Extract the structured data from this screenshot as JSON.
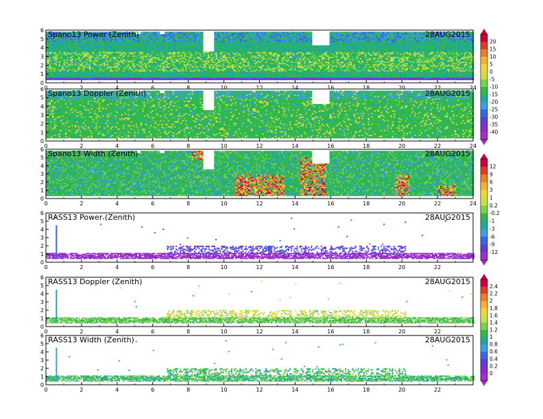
{
  "chart_data": [
    {
      "type": "heatmap",
      "title": "Spano13 Power (Zenith)",
      "date": "28AUG2015",
      "xlim": [
        0,
        24
      ],
      "ylim": [
        0,
        6
      ],
      "xticks": [
        "0",
        "2",
        "4",
        "6",
        "8",
        "10",
        "12",
        "14",
        "16",
        "18",
        "20",
        "22",
        "24"
      ],
      "yticks": [
        "0",
        "1",
        "2",
        "3",
        "4",
        "5",
        "6"
      ],
      "kind": "spano-power",
      "colorbar": {
        "labels": [
          "20",
          "15",
          "10",
          "5",
          "0",
          "-5",
          "-10",
          "-15",
          "-20",
          "-25",
          "-30",
          "-35",
          "-40"
        ],
        "colors": [
          "#c8003c",
          "#e03a2a",
          "#f07c2a",
          "#f5b036",
          "#f0d83a",
          "#c8e046",
          "#7cd050",
          "#30b84a",
          "#20a8a0",
          "#3ca0e0",
          "#3c64e6",
          "#5a40d8",
          "#8a2ad0",
          "#a030c8"
        ]
      }
    },
    {
      "type": "heatmap",
      "title": "Spano13 Doppler (Zenith)",
      "date": "28AUG2015",
      "xlim": [
        0,
        24
      ],
      "ylim": [
        0,
        6
      ],
      "xticks": [
        "0",
        "2",
        "4",
        "6",
        "8",
        "10",
        "12",
        "14",
        "16",
        "18",
        "20",
        "22",
        "24"
      ],
      "yticks": [
        "0",
        "1",
        "2",
        "3",
        "4",
        "5",
        "6"
      ],
      "kind": "spano-doppler"
    },
    {
      "type": "heatmap",
      "title": "Spano13 Width (Zenith)",
      "date": "28AUG2015",
      "xlim": [
        0,
        24
      ],
      "ylim": [
        0,
        6
      ],
      "xticks": [
        "0",
        "2",
        "4",
        "6",
        "8",
        "10",
        "12",
        "14",
        "16",
        "18",
        "20",
        "22",
        "24"
      ],
      "yticks": [
        "0",
        "1",
        "2",
        "3",
        "4",
        "5",
        "6"
      ],
      "kind": "spano-width",
      "colorbar": {
        "labels": [
          "12",
          "9",
          "6",
          "3",
          "1",
          "0.2",
          "-0.2",
          "-1",
          "-3",
          "-6",
          "-9",
          "-12"
        ],
        "colors": [
          "#c8003c",
          "#e03a2a",
          "#f07c2a",
          "#f5b036",
          "#f0d83a",
          "#c8e046",
          "#7cd050",
          "#30b84a",
          "#20a8a0",
          "#3ca0e0",
          "#3c64e6",
          "#5a40d8",
          "#a030c8"
        ]
      }
    },
    {
      "type": "scatter",
      "title": "RASS13 Power (Zenith)",
      "date": "28AUG2015",
      "xlim": [
        0,
        24
      ],
      "ylim": [
        0,
        6
      ],
      "xticks": [
        "0",
        "2",
        "4",
        "6",
        "8",
        "10",
        "12",
        "14",
        "16",
        "18",
        "20",
        "22"
      ],
      "yticks": [
        "0",
        "1",
        "2",
        "3",
        "4",
        "5",
        "6"
      ],
      "kind": "rass-power"
    },
    {
      "type": "scatter",
      "title": "RASS13 Doppler (Zenith)",
      "date": "28AUG2015",
      "xlim": [
        0,
        24
      ],
      "ylim": [
        0,
        6
      ],
      "xticks": [
        "0",
        "2",
        "4",
        "6",
        "8",
        "10",
        "12",
        "14",
        "16",
        "18",
        "20",
        "22"
      ],
      "yticks": [
        "0",
        "1",
        "2",
        "3",
        "4",
        "5",
        "6"
      ],
      "kind": "rass-doppler",
      "colorbar": {
        "labels": [
          "2.4",
          "2.2",
          "2",
          "1.8",
          "1.6",
          "1.4",
          "1.2",
          "1",
          "0.8",
          "0.6",
          "0.4",
          "0.2",
          "0"
        ],
        "colors": [
          "#c8003c",
          "#e03a2a",
          "#f07c2a",
          "#f5b036",
          "#f0d83a",
          "#c8e046",
          "#7cd050",
          "#30b84a",
          "#20a8a0",
          "#3ca0e0",
          "#3c64e6",
          "#5a40d8",
          "#8a2ad0",
          "#a030c8"
        ]
      }
    },
    {
      "type": "scatter",
      "title": "RASS13 Width (Zenith)",
      "date": "28AUG2015",
      "xlim": [
        0,
        24
      ],
      "ylim": [
        0,
        6
      ],
      "xticks": [
        "0",
        "2",
        "4",
        "6",
        "8",
        "10",
        "12",
        "14",
        "16",
        "18",
        "20",
        "22"
      ],
      "yticks": [
        "0",
        "1",
        "2",
        "3",
        "4",
        "5",
        "6"
      ],
      "kind": "rass-width"
    }
  ]
}
